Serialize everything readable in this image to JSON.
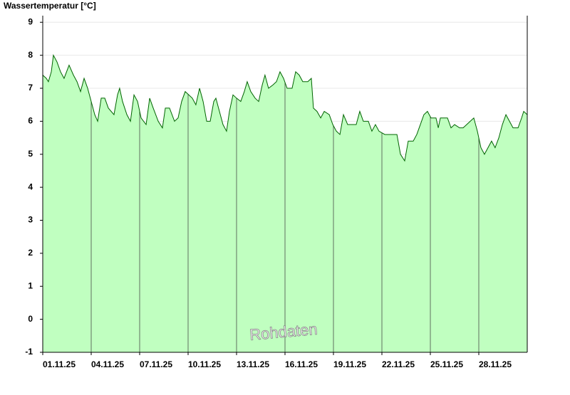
{
  "chart_data": {
    "type": "area",
    "title": "Wassertemperatur [°C]",
    "annotation": "Rohdaten",
    "color": "#006400",
    "fill": "#c0ffc0",
    "grid": true,
    "x": [
      0,
      0.22,
      0.35,
      0.53,
      0.66,
      0.88,
      1.1,
      1.32,
      1.63,
      1.9,
      2.12,
      2.34,
      2.56,
      2.78,
      3.0,
      3.22,
      3.4,
      3.62,
      3.84,
      4.06,
      4.41,
      4.63,
      4.76,
      4.94,
      5.21,
      5.43,
      5.65,
      5.87,
      6.09,
      6.4,
      6.62,
      6.84,
      7.15,
      7.41,
      7.59,
      7.85,
      8.16,
      8.38,
      8.6,
      8.82,
      9.04,
      9.26,
      9.48,
      9.71,
      9.93,
      10.15,
      10.37,
      10.59,
      10.72,
      10.94,
      11.16,
      11.38,
      11.56,
      11.78,
      12.0,
      12.26,
      12.48,
      12.66,
      12.88,
      13.15,
      13.37,
      13.59,
      13.76,
      13.98,
      14.25,
      14.47,
      14.69,
      14.91,
      15.13,
      15.44,
      15.66,
      15.88,
      16.1,
      16.41,
      16.63,
      16.76,
      16.98,
      17.21,
      17.43,
      17.74,
      17.96,
      18.18,
      18.4,
      18.62,
      18.88,
      19.19,
      19.41,
      19.63,
      19.85,
      20.16,
      20.38,
      20.6,
      20.82,
      21.18,
      21.62,
      21.93,
      22.15,
      22.41,
      22.63,
      22.94,
      23.16,
      23.38,
      23.6,
      23.82,
      24.04,
      24.35,
      24.49,
      24.62,
      25.06,
      25.28,
      25.5,
      25.81,
      26.03,
      26.25,
      26.47,
      26.69,
      26.91,
      27.13,
      27.35,
      27.57,
      27.79,
      28.01,
      28.24,
      28.46,
      28.68,
      28.9,
      29.12,
      29.43,
      29.65,
      29.78,
      30
    ],
    "values": [
      7.4,
      7.3,
      7.2,
      7.5,
      8.0,
      7.8,
      7.5,
      7.3,
      7.7,
      7.4,
      7.2,
      6.9,
      7.3,
      7.0,
      6.6,
      6.2,
      6.0,
      6.7,
      6.7,
      6.4,
      6.2,
      6.8,
      7.0,
      6.6,
      6.2,
      6.0,
      6.8,
      6.6,
      6.1,
      5.9,
      6.7,
      6.4,
      6.0,
      5.8,
      6.4,
      6.4,
      6.0,
      6.1,
      6.6,
      6.9,
      6.8,
      6.7,
      6.5,
      7.0,
      6.6,
      6.0,
      6.0,
      6.6,
      6.7,
      6.3,
      5.9,
      5.7,
      6.3,
      6.8,
      6.7,
      6.6,
      6.9,
      7.2,
      6.9,
      6.7,
      6.6,
      7.1,
      7.4,
      7.0,
      7.1,
      7.2,
      7.5,
      7.3,
      7.0,
      7.0,
      7.5,
      7.4,
      7.2,
      7.2,
      7.3,
      6.4,
      6.3,
      6.1,
      6.3,
      6.2,
      5.9,
      5.7,
      5.6,
      6.2,
      5.9,
      5.9,
      5.9,
      6.3,
      6.0,
      6.0,
      5.7,
      5.9,
      5.7,
      5.6,
      5.6,
      5.6,
      5.0,
      4.8,
      5.4,
      5.4,
      5.6,
      5.9,
      6.2,
      6.3,
      6.1,
      6.1,
      5.8,
      6.1,
      6.1,
      5.8,
      5.9,
      5.8,
      5.8,
      5.9,
      6.0,
      6.1,
      5.7,
      5.2,
      5.0,
      5.2,
      5.4,
      5.2,
      5.5,
      5.9,
      6.2,
      6.0,
      5.8,
      5.8,
      6.1,
      6.3,
      6.2
    ],
    "xlim": [
      0,
      30
    ],
    "ylim": [
      -1,
      9.2
    ],
    "xticks": [
      {
        "value": 0,
        "label": "01.11.25"
      },
      {
        "value": 3,
        "label": "04.11.25"
      },
      {
        "value": 6,
        "label": "07.11.25"
      },
      {
        "value": 9,
        "label": "10.11.25"
      },
      {
        "value": 12,
        "label": "13.11.25"
      },
      {
        "value": 15,
        "label": "16.11.25"
      },
      {
        "value": 18,
        "label": "19.11.25"
      },
      {
        "value": 21,
        "label": "22.11.25"
      },
      {
        "value": 24,
        "label": "25.11.25"
      },
      {
        "value": 27,
        "label": "28.11.25"
      }
    ],
    "yticks": [
      -1,
      0,
      1,
      2,
      3,
      4,
      5,
      6,
      7,
      8,
      9
    ]
  }
}
